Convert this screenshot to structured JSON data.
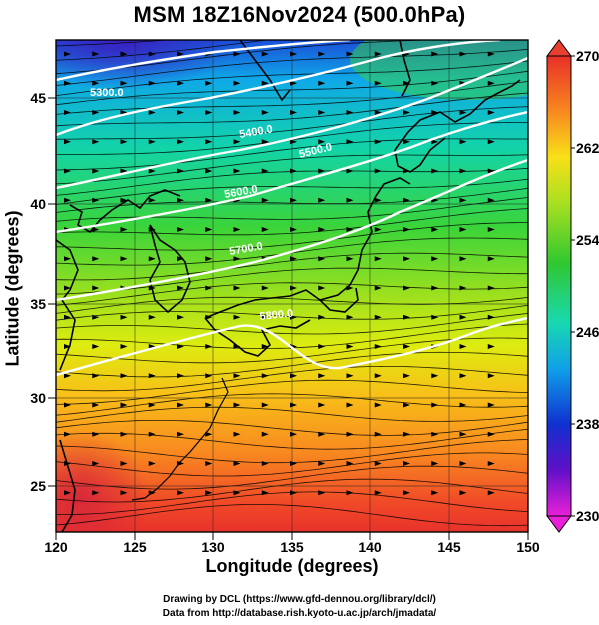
{
  "title": "MSM 18Z16Nov2024 (500.0hPa)",
  "x_axis": {
    "label": "Longitude (degrees)",
    "ticks": [
      "120",
      "125",
      "130",
      "135",
      "140",
      "145",
      "150"
    ]
  },
  "y_axis": {
    "label": "Latitude  (degrees)",
    "ticks": [
      "25",
      "30",
      "35",
      "40",
      "45"
    ]
  },
  "colorbar": {
    "ticks": [
      "270",
      "262",
      "254",
      "246",
      "238",
      "230"
    ],
    "min": 230,
    "max": 270
  },
  "contour_labels": [
    "5300.0",
    "5400.0",
    "5500.0",
    "5600.0",
    "5700.0",
    "5800.0"
  ],
  "credits": {
    "line1": "Drawing by DCL (https://www.gfd-dennou.org/library/dcl/)",
    "line2": "Data from http://database.rish.kyoto-u.ac.jp/arch/jmadata/"
  }
}
